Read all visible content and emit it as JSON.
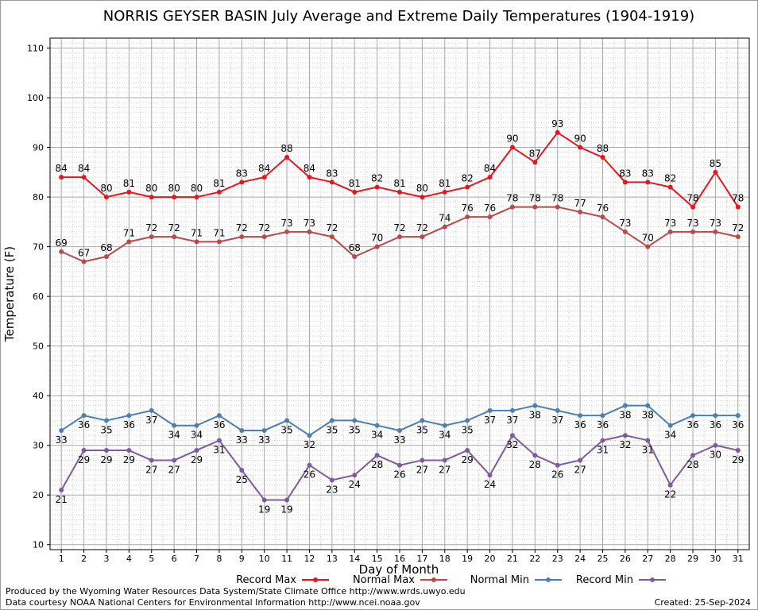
{
  "chart_data": {
    "type": "line",
    "title": "NORRIS GEYSER BASIN July Average and Extreme Daily Temperatures (1904-1919)",
    "xlabel": "Day of Month",
    "ylabel": "Temperature (F)",
    "x": [
      1,
      2,
      3,
      4,
      5,
      6,
      7,
      8,
      9,
      10,
      11,
      12,
      13,
      14,
      15,
      16,
      17,
      18,
      19,
      20,
      21,
      22,
      23,
      24,
      25,
      26,
      27,
      28,
      29,
      30,
      31
    ],
    "xlim": [
      0.5,
      31.5
    ],
    "ylim": [
      9,
      112
    ],
    "yticks": [
      10,
      20,
      30,
      40,
      50,
      60,
      70,
      80,
      90,
      100,
      110
    ],
    "grid": true,
    "legend_position": "bottom",
    "series": [
      {
        "name": "Record Max",
        "color": "#e8161c",
        "values": [
          84,
          84,
          80,
          81,
          80,
          80,
          80,
          81,
          83,
          84,
          88,
          84,
          83,
          81,
          82,
          81,
          80,
          81,
          82,
          84,
          90,
          87,
          93,
          90,
          88,
          83,
          83,
          82,
          78,
          85,
          78
        ]
      },
      {
        "name": "Normal Max",
        "color": "#b94a48",
        "values": [
          69,
          67,
          68,
          71,
          72,
          72,
          71,
          71,
          72,
          72,
          73,
          73,
          72,
          68,
          70,
          72,
          72,
          74,
          76,
          76,
          78,
          78,
          78,
          77,
          76,
          73,
          70,
          73,
          73,
          73,
          72
        ]
      },
      {
        "name": "Normal Min",
        "color": "#4a7fb5",
        "values": [
          33,
          36,
          35,
          36,
          37,
          34,
          34,
          36,
          33,
          33,
          35,
          32,
          35,
          35,
          34,
          33,
          35,
          34,
          35,
          37,
          37,
          38,
          37,
          36,
          36,
          38,
          38,
          34,
          36,
          36,
          36
        ]
      },
      {
        "name": "Record Min",
        "color": "#7f5a9e",
        "values": [
          21,
          29,
          29,
          29,
          27,
          27,
          29,
          31,
          25,
          19,
          19,
          26,
          23,
          24,
          28,
          26,
          27,
          27,
          29,
          24,
          32,
          28,
          26,
          27,
          31,
          32,
          31,
          22,
          28,
          30,
          29
        ]
      }
    ]
  },
  "footer": {
    "credit_line1": "Produced by the Wyoming Water Resources Data System/State Climate Office http://www.wrds.uwyo.edu",
    "credit_line2": "Data courtesy NOAA National Centers for Environmental Information http://www.ncei.noaa.gov",
    "created": "Created:  25-Sep-2024"
  }
}
